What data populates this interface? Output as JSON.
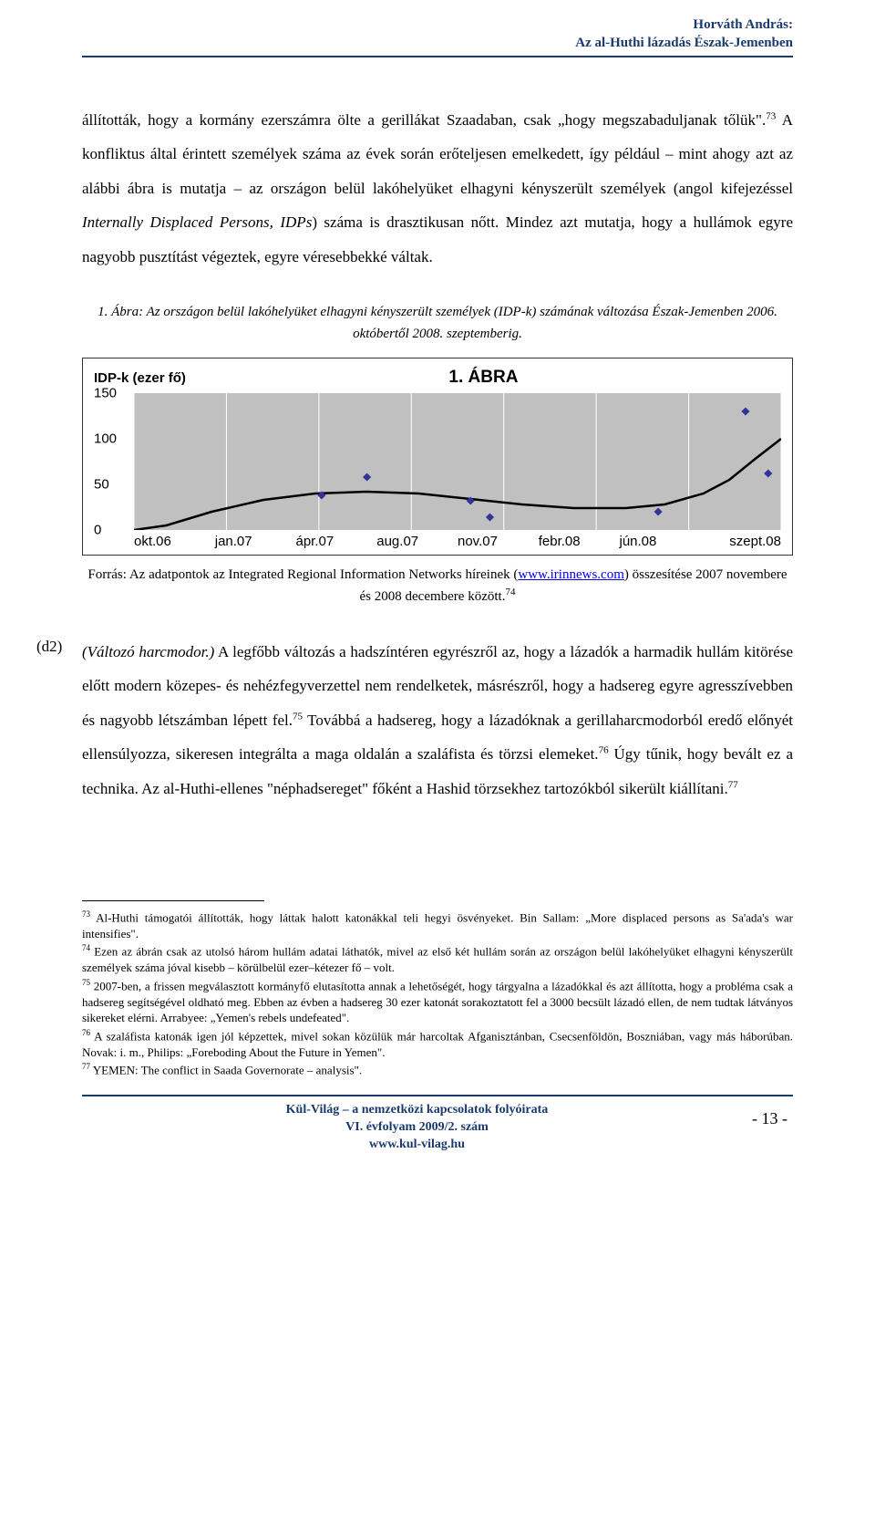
{
  "header": {
    "author": "Horváth András:",
    "title": "Az al-Huthi lázadás Észak-Jemenben"
  },
  "para1": "állították, hogy a kormány ezerszámra ölte a gerillákat Szaadaban, csak „hogy megszabaduljanak tőlük\".",
  "para1_sup": "73",
  "para1_cont": " A konfliktus által érintett személyek száma az évek során erőteljesen emelkedett, így például – mint ahogy azt az alábbi ábra is mutatja – az országon belül lakóhelyüket elhagyni kényszerült személyek (angol kifejezéssel ",
  "para1_italic": "Internally Displaced Persons, IDPs",
  "para1_end": ") száma is drasztikusan nőtt. Mindez azt mutatja, hogy a hullámok egyre nagyobb pusztítást végeztek, egyre véresebbekké váltak.",
  "caption": "1. Ábra: Az országon belül lakóhelyüket elhagyni kényszerült személyek (IDP-k) számának változása Észak-Jemenben 2006. októbertől 2008. szeptemberig.",
  "chart": {
    "type": "line-scatter",
    "title": "1. ÁBRA",
    "ylabel": "IDP-k (ezer fő)",
    "ylim": [
      0,
      150
    ],
    "yticks": [
      0,
      50,
      100,
      150
    ],
    "xlabels": [
      "okt.06",
      "jan.07",
      "ápr.07",
      "aug.07",
      "nov.07",
      "febr.08",
      "jún.08",
      "szept.08"
    ],
    "plot_background": "#c0c0c0",
    "grid_color": "#ffffff",
    "line_color": "#000000",
    "marker_color": "#333399",
    "marker_style": "diamond",
    "points": [
      {
        "x": 0.29,
        "y": 38
      },
      {
        "x": 0.36,
        "y": 58
      },
      {
        "x": 0.52,
        "y": 32
      },
      {
        "x": 0.55,
        "y": 14
      },
      {
        "x": 0.81,
        "y": 20
      },
      {
        "x": 0.945,
        "y": 130
      },
      {
        "x": 0.98,
        "y": 62
      }
    ],
    "line_path": [
      {
        "x": 0.0,
        "y": 0
      },
      {
        "x": 0.05,
        "y": 5
      },
      {
        "x": 0.12,
        "y": 20
      },
      {
        "x": 0.2,
        "y": 33
      },
      {
        "x": 0.28,
        "y": 40
      },
      {
        "x": 0.36,
        "y": 42
      },
      {
        "x": 0.44,
        "y": 40
      },
      {
        "x": 0.52,
        "y": 34
      },
      {
        "x": 0.6,
        "y": 28
      },
      {
        "x": 0.68,
        "y": 24
      },
      {
        "x": 0.76,
        "y": 24
      },
      {
        "x": 0.82,
        "y": 28
      },
      {
        "x": 0.88,
        "y": 40
      },
      {
        "x": 0.92,
        "y": 55
      },
      {
        "x": 0.96,
        "y": 78
      },
      {
        "x": 1.0,
        "y": 100
      }
    ],
    "line_width": 2.5,
    "marker_size": 9
  },
  "chart_source_pre": "Forrás: Az adatpontok az Integrated Regional Information Networks híreinek (",
  "chart_source_link": "www.irinnews.com",
  "chart_source_post": ") összesítése 2007 novembere és 2008 decembere között.",
  "chart_source_sup": "74",
  "d2_label": "(d2)",
  "d2_italic": "(Változó harcmodor.)",
  "d2_text": " A legfőbb változás a hadszíntéren egyrészről az, hogy a lázadók a harmadik hullám kitörése előtt modern közepes- és nehézfegyverzettel nem rendelketek, másrészről, hogy a hadsereg egyre agresszívebben és nagyobb létszámban lépett fel.",
  "d2_sup1": "75",
  "d2_cont1": " Továbbá a hadsereg, hogy a lázadóknak a gerillaharcmodorból eredő előnyét ellensúlyozza, sikeresen integrálta a maga oldalán a szaláfista és törzsi elemeket.",
  "d2_sup2": "76",
  "d2_cont2": " Úgy tűnik, hogy bevált ez a technika. Az al-Huthi-ellenes \"néphadsereget\" főként a Hashid törzsekhez tartozókból sikerült kiállítani.",
  "d2_sup3": "77",
  "footnotes": {
    "f73": "Al-Huthi támogatói állították, hogy láttak halott katonákkal teli hegyi ösvényeket. Bin Sallam: „More displaced persons as Sa'ada's war intensifies\".",
    "f74": "Ezen az ábrán csak az utolsó három hullám adatai láthatók, mivel az első két hullám során az országon belül lakóhelyüket elhagyni kényszerült személyek száma jóval kisebb – körülbelül ezer–kétezer fő – volt.",
    "f75": "2007-ben, a frissen megválasztott kormányfő elutasította annak a lehetőségét, hogy tárgyalna a lázadókkal és azt állította, hogy a probléma csak a hadsereg segítségével oldható meg. Ebben az évben a hadsereg 30 ezer katonát sorakoztatott fel a 3000 becsült lázadó ellen, de nem tudtak látványos sikereket elérni. Arrabyee: „Yemen's rebels undefeated\".",
    "f76": "A szaláfista katonák igen jól képzettek, mivel sokan közülük már harcoltak Afganisztánban, Csecsenföldön, Boszniában, vagy más háborúban. Novak: i. m., Philips: „Foreboding About the Future in Yemen\".",
    "f77": "YEMEN: The conflict in Saada Governorate – analysis\"."
  },
  "footer": {
    "line1": "Kül-Világ – a nemzetközi kapcsolatok folyóirata",
    "line2": "VI. évfolyam 2009/2. szám",
    "line3": "www.kul-vilag.hu",
    "page": "- 13 -"
  }
}
